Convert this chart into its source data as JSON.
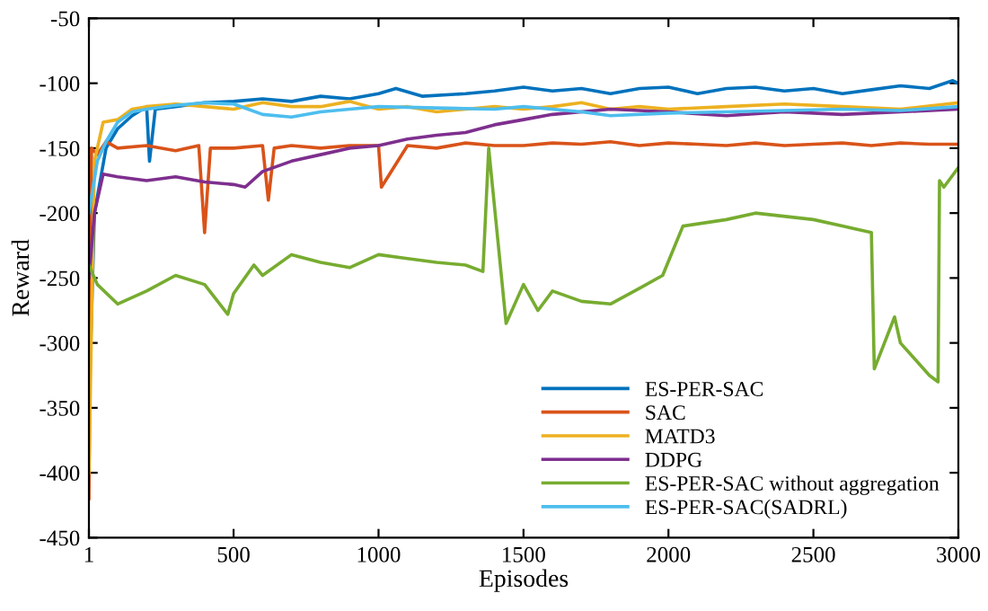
{
  "chart_data": {
    "type": "line",
    "xlabel": "Episodes",
    "ylabel": "Reward",
    "xlim": [
      1,
      3000
    ],
    "ylim": [
      -450,
      -50
    ],
    "xticks": [
      1,
      500,
      1000,
      1500,
      2000,
      2500,
      3000
    ],
    "yticks": [
      -450,
      -400,
      -350,
      -300,
      -250,
      -200,
      -150,
      -100,
      -50
    ],
    "grid": false,
    "legend": "bottom right",
    "marker": "none",
    "line_style": "solid",
    "series": [
      {
        "name": "ES-PER-SAC",
        "color": "#0072bd",
        "x": [
          1,
          20,
          60,
          100,
          150,
          200,
          210,
          230,
          300,
          400,
          500,
          600,
          700,
          800,
          900,
          1000,
          1060,
          1150,
          1300,
          1400,
          1500,
          1600,
          1700,
          1800,
          1900,
          2000,
          2100,
          2200,
          2300,
          2400,
          2500,
          2600,
          2700,
          2800,
          2900,
          2980,
          3000
        ],
        "values": [
          -350,
          -200,
          -150,
          -135,
          -125,
          -118,
          -160,
          -120,
          -118,
          -115,
          -114,
          -112,
          -114,
          -110,
          -112,
          -108,
          -104,
          -110,
          -108,
          -106,
          -103,
          -106,
          -104,
          -108,
          -104,
          -103,
          -108,
          -104,
          -103,
          -106,
          -104,
          -108,
          -105,
          -102,
          -104,
          -98,
          -100
        ]
      },
      {
        "name": "SAC",
        "color": "#d95319",
        "x": [
          1,
          10,
          30,
          60,
          100,
          200,
          300,
          380,
          400,
          420,
          500,
          600,
          620,
          640,
          700,
          800,
          900,
          1000,
          1010,
          1100,
          1200,
          1300,
          1400,
          1500,
          1600,
          1700,
          1800,
          1900,
          2000,
          2100,
          2200,
          2300,
          2400,
          2500,
          2600,
          2700,
          2800,
          2900,
          3000
        ],
        "values": [
          -420,
          -150,
          -155,
          -145,
          -150,
          -148,
          -152,
          -148,
          -215,
          -150,
          -150,
          -148,
          -190,
          -150,
          -148,
          -150,
          -148,
          -148,
          -180,
          -148,
          -150,
          -146,
          -148,
          -148,
          -146,
          -147,
          -145,
          -148,
          -146,
          -147,
          -148,
          -146,
          -148,
          -147,
          -146,
          -148,
          -146,
          -147,
          -147
        ]
      },
      {
        "name": "MATD3",
        "color": "#edb120",
        "x": [
          1,
          20,
          50,
          100,
          150,
          200,
          300,
          400,
          500,
          600,
          700,
          800,
          900,
          1000,
          1100,
          1200,
          1300,
          1400,
          1500,
          1600,
          1700,
          1800,
          1900,
          2000,
          2200,
          2400,
          2600,
          2800,
          3000
        ],
        "values": [
          -400,
          -160,
          -130,
          -128,
          -120,
          -118,
          -116,
          -118,
          -120,
          -115,
          -118,
          -118,
          -114,
          -120,
          -118,
          -122,
          -120,
          -118,
          -120,
          -118,
          -115,
          -120,
          -118,
          -120,
          -118,
          -116,
          -118,
          -120,
          -115
        ]
      },
      {
        "name": "DDPG",
        "color": "#7e2f8e",
        "x": [
          1,
          20,
          50,
          100,
          200,
          300,
          400,
          500,
          540,
          600,
          700,
          800,
          900,
          1000,
          1100,
          1200,
          1300,
          1400,
          1500,
          1600,
          1800,
          2000,
          2200,
          2400,
          2600,
          2800,
          3000
        ],
        "values": [
          -250,
          -200,
          -170,
          -172,
          -175,
          -172,
          -176,
          -178,
          -180,
          -168,
          -160,
          -155,
          -150,
          -148,
          -143,
          -140,
          -138,
          -132,
          -128,
          -124,
          -120,
          -122,
          -125,
          -122,
          -124,
          -122,
          -120
        ]
      },
      {
        "name": "ES-PER-SAC without aggregation",
        "color": "#77ac30",
        "x": [
          1,
          30,
          100,
          200,
          300,
          400,
          480,
          500,
          570,
          600,
          700,
          800,
          900,
          1000,
          1100,
          1200,
          1300,
          1360,
          1380,
          1440,
          1500,
          1550,
          1600,
          1700,
          1800,
          1900,
          1980,
          2050,
          2200,
          2300,
          2500,
          2600,
          2700,
          2710,
          2780,
          2800,
          2900,
          2930,
          2935,
          2950,
          3000
        ],
        "values": [
          -240,
          -255,
          -270,
          -260,
          -248,
          -255,
          -278,
          -262,
          -240,
          -248,
          -232,
          -238,
          -242,
          -232,
          -235,
          -238,
          -240,
          -245,
          -150,
          -285,
          -255,
          -275,
          -260,
          -268,
          -270,
          -258,
          -248,
          -210,
          -205,
          -200,
          -205,
          -210,
          -215,
          -320,
          -280,
          -300,
          -325,
          -330,
          -175,
          -180,
          -165
        ]
      },
      {
        "name": "ES-PER-SAC(SADRL)",
        "color": "#4dbeee",
        "x": [
          1,
          30,
          60,
          100,
          150,
          200,
          300,
          400,
          500,
          550,
          600,
          700,
          800,
          900,
          1000,
          1200,
          1400,
          1500,
          1700,
          1800,
          2000,
          2200,
          2400,
          2600,
          2800,
          3000
        ],
        "values": [
          -200,
          -160,
          -145,
          -130,
          -122,
          -120,
          -117,
          -115,
          -116,
          -120,
          -124,
          -126,
          -122,
          -120,
          -118,
          -119,
          -120,
          -118,
          -122,
          -125,
          -123,
          -122,
          -121,
          -120,
          -121,
          -118
        ]
      }
    ]
  }
}
